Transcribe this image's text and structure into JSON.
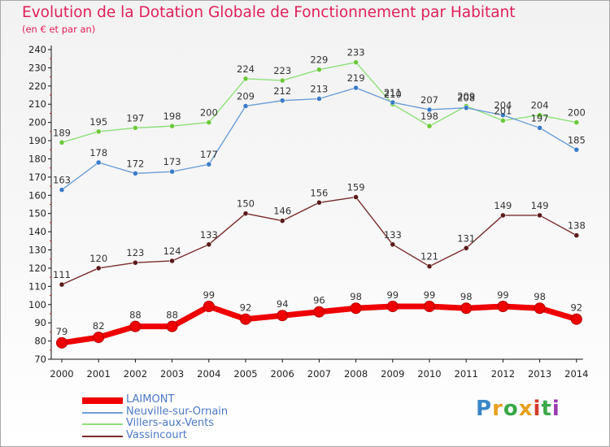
{
  "title": "Evolution de la Dotation Globale de Fonctionnement par Habitant",
  "subtitle": "(en € et par an)",
  "brand": {
    "text": "Proxiti",
    "letter_colors": [
      "#3a86c8",
      "#e8a020",
      "#3aa848",
      "#e8a020",
      "#d63a2a",
      "#3aa848",
      "#9a3ab0"
    ]
  },
  "chart_data": {
    "type": "line",
    "title": "Evolution de la Dotation Globale de Fonctionnement par Habitant",
    "subtitle": "(en € et par an)",
    "x": [
      "2000",
      "2001",
      "2002",
      "2003",
      "2004",
      "2005",
      "2006",
      "2007",
      "2008",
      "2009",
      "2010",
      "2011",
      "2012",
      "2013",
      "2014"
    ],
    "ylim": [
      70,
      240
    ],
    "yticks": [
      70,
      80,
      90,
      100,
      110,
      120,
      130,
      140,
      150,
      160,
      170,
      180,
      190,
      200,
      210,
      220,
      230,
      240
    ],
    "grid": false,
    "legend_position": "bottom-left",
    "series": [
      {
        "name": "LAIMONT",
        "color": "#ee0000",
        "point_color": "#ee0000",
        "style": "thick",
        "values": [
          79,
          82,
          88,
          88,
          99,
          92,
          94,
          96,
          98,
          99,
          99,
          98,
          99,
          98,
          92
        ]
      },
      {
        "name": "Neuville-sur-Ornain",
        "color": "#6c9ed6",
        "point_color": "#3a7bc8",
        "style": "thin",
        "values": [
          163,
          178,
          172,
          173,
          177,
          209,
          212,
          213,
          219,
          211,
          207,
          208,
          204,
          197,
          185
        ]
      },
      {
        "name": "Villers-aux-Vents",
        "color": "#8ee07a",
        "point_color": "#6cc83a",
        "style": "thin",
        "values": [
          189,
          195,
          197,
          198,
          200,
          224,
          223,
          229,
          233,
          210,
          198,
          209,
          201,
          204,
          200
        ]
      },
      {
        "name": "Vassincourt",
        "color": "#7a2c2c",
        "point_color": "#5a1a1a",
        "style": "thin",
        "values": [
          111,
          120,
          123,
          124,
          133,
          150,
          146,
          156,
          159,
          133,
          121,
          131,
          149,
          149,
          138
        ]
      }
    ]
  }
}
